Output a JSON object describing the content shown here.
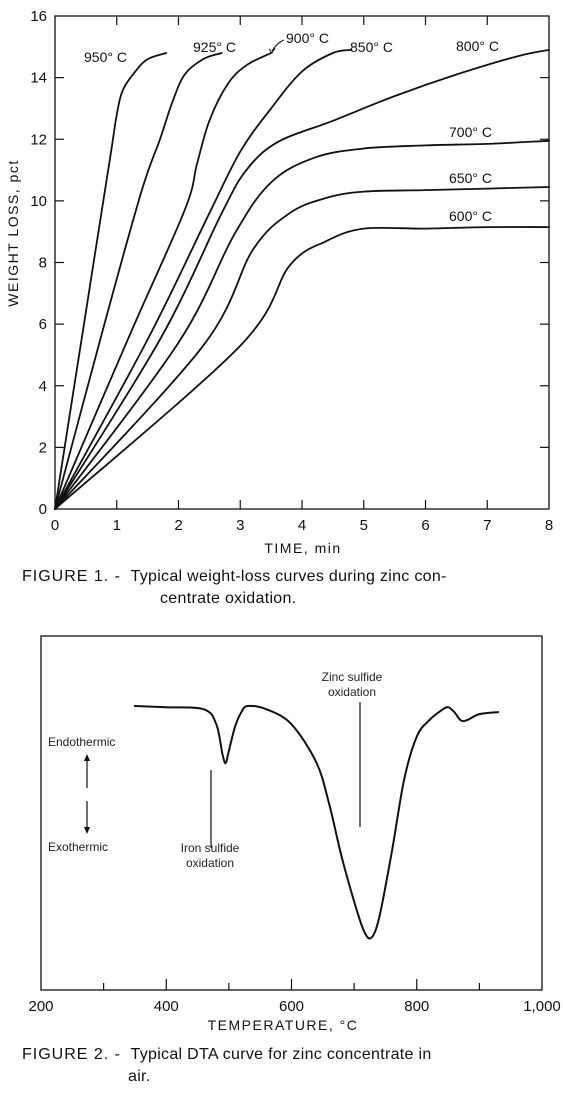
{
  "figures": {
    "fig1": {
      "caption_label": "FIGURE 1. -",
      "caption_text": "Typical weight-loss curves during zinc concentrate oxidation.",
      "caption_line1": "Typical weight-loss curves during zinc con-",
      "caption_line2": "centrate oxidation."
    },
    "fig2": {
      "caption_label": "FIGURE 2. -",
      "caption_text": "Typical DTA curve for zinc concentrate in air.",
      "caption_line1": "Typical DTA curve for zinc concentrate in",
      "caption_line2": "air."
    }
  },
  "chart_data": [
    {
      "type": "line",
      "title": "",
      "xlabel": "TIME,  min",
      "ylabel": "WEIGHT LOSS, pct",
      "xlim": [
        0,
        8
      ],
      "ylim": [
        0,
        16
      ],
      "xticks": [
        "0",
        "1",
        "2",
        "3",
        "4",
        "5",
        "6",
        "7",
        "8"
      ],
      "yticks": [
        "0",
        "2",
        "4",
        "6",
        "8",
        "10",
        "12",
        "14",
        "16"
      ],
      "grid": false,
      "series": [
        {
          "name": "950° C",
          "x": [
            0,
            0.5,
            0.9,
            1.0,
            1.1,
            1.3,
            1.5,
            1.8
          ],
          "y": [
            0,
            6.4,
            11.5,
            12.8,
            13.6,
            14.2,
            14.6,
            14.8
          ]
        },
        {
          "name": "925° C",
          "x": [
            0,
            0.8,
            1.4,
            1.7,
            1.9,
            2.1,
            2.4,
            2.7
          ],
          "y": [
            0,
            6.0,
            10.3,
            12.0,
            13.2,
            14.1,
            14.6,
            14.8
          ]
        },
        {
          "name": "900° C",
          "x": [
            0,
            1.2,
            2.1,
            2.3,
            2.5,
            2.8,
            3.1,
            3.5
          ],
          "y": [
            0,
            5.6,
            9.7,
            11.2,
            12.6,
            13.8,
            14.4,
            14.8
          ]
        },
        {
          "name": "850° C",
          "x": [
            0,
            1.5,
            2.5,
            3.0,
            3.5,
            4.0,
            4.5,
            4.8
          ],
          "y": [
            0,
            5.5,
            9.6,
            11.6,
            13.0,
            14.2,
            14.8,
            14.9
          ]
        },
        {
          "name": "800° C",
          "x": [
            0,
            1.7,
            2.7,
            3.1,
            3.6,
            4.5,
            5.5,
            6.5,
            7.5,
            8.0
          ],
          "y": [
            0,
            5.5,
            9.6,
            11.0,
            11.9,
            12.6,
            13.4,
            14.1,
            14.7,
            14.9
          ]
        },
        {
          "name": "700° C",
          "x": [
            0,
            2.0,
            2.9,
            3.5,
            4.2,
            5.0,
            6.0,
            7.0,
            8.0
          ],
          "y": [
            0,
            5.4,
            8.9,
            10.6,
            11.4,
            11.7,
            11.8,
            11.85,
            11.95
          ]
        },
        {
          "name": "650° C",
          "x": [
            0,
            2.4,
            3.2,
            3.8,
            4.4,
            5.0,
            6.0,
            7.0,
            8.0
          ],
          "y": [
            0,
            5.3,
            8.4,
            9.6,
            10.1,
            10.3,
            10.35,
            10.4,
            10.45
          ]
        },
        {
          "name": "600° C",
          "x": [
            0,
            3.0,
            3.8,
            4.4,
            5.0,
            6.0,
            7.0,
            8.0
          ],
          "y": [
            0,
            5.3,
            7.9,
            8.7,
            9.1,
            9.1,
            9.15,
            9.15
          ]
        }
      ]
    },
    {
      "type": "line",
      "title": "",
      "xlabel": "TEMPERATURE, °C",
      "ylabel": "",
      "xlim": [
        200,
        1000
      ],
      "xticks": [
        "200",
        "400",
        "600",
        "800",
        "1,000"
      ],
      "grid": false,
      "legend_up": "Endothermic",
      "legend_down": "Exothermic",
      "annotations": [
        {
          "lines": [
            "Zinc sulfide",
            "oxidation"
          ],
          "x": 727
        },
        {
          "lines": [
            "Iron sulfide",
            "oxidation"
          ],
          "x": 495
        }
      ],
      "series": [
        {
          "name": "",
          "x": [
            350,
            400,
            460,
            480,
            490,
            495,
            500,
            510,
            520,
            530,
            560,
            600,
            640,
            660,
            680,
            700,
            715,
            727,
            740,
            760,
            780,
            800,
            820,
            840,
            850,
            860,
            870,
            880,
            900,
            930
          ],
          "y": [
            0.0,
            -0.3,
            -0.8,
            -4.5,
            -12,
            -14,
            -11,
            -5,
            -1.5,
            0.0,
            -0.8,
            -4.5,
            -14,
            -24,
            -37,
            -48,
            -55,
            -57,
            -52,
            -36,
            -18,
            -7.5,
            -3.5,
            -1.0,
            -0.3,
            -1.5,
            -3.5,
            -3.5,
            -2.0,
            -1.5
          ]
        }
      ]
    }
  ]
}
